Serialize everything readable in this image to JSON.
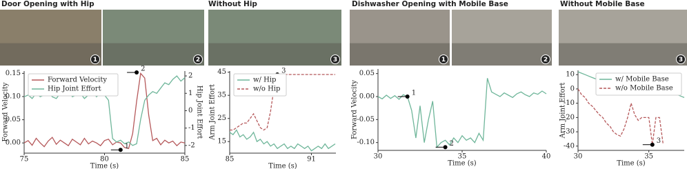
{
  "chart_data": [
    {
      "type": "line",
      "title": "Door Opening with Hip",
      "photo_badges": [
        "1",
        "2"
      ],
      "x_label": "Time (s)",
      "y_label": "Forward Velocity",
      "y2_label": "Hip Joint Effort",
      "x": [
        75,
        75.25,
        75.5,
        75.75,
        76,
        76.25,
        76.5,
        76.75,
        77,
        77.25,
        77.5,
        77.75,
        78,
        78.25,
        78.5,
        78.75,
        79,
        79.25,
        79.5,
        79.75,
        80,
        80.25,
        80.5,
        80.75,
        81,
        81.25,
        81.5,
        81.75,
        82,
        82.25,
        82.5,
        82.75,
        83,
        83.25,
        83.5,
        83.75,
        84,
        84.25,
        84.5,
        84.75,
        85
      ],
      "series": [
        {
          "name": "Forward Velocity",
          "color": "#b5585a",
          "style": "solid",
          "values": [
            0.0,
            0.005,
            -0.005,
            0.01,
            0.0,
            -0.008,
            0.004,
            0.012,
            -0.003,
            0.006,
            0.0,
            -0.006,
            0.008,
            0.002,
            -0.004,
            0.01,
            -0.002,
            0.004,
            0.0,
            -0.006,
            0.005,
            0.008,
            -0.004,
            0.002,
            0.0,
            -0.01,
            -0.012,
            0.02,
            0.09,
            0.15,
            0.14,
            0.06,
            0.005,
            0.01,
            -0.004,
            0.006,
            0.0,
            0.004,
            -0.006,
            0.002,
            0.0
          ]
        },
        {
          "name": "Hip Joint Effort",
          "color": "#6fb69a",
          "style": "solid",
          "axis": "y2",
          "values": [
            0.8,
            0.9,
            0.7,
            1.0,
            0.8,
            0.9,
            1.1,
            0.8,
            0.7,
            1.0,
            0.9,
            1.2,
            0.8,
            0.9,
            1.0,
            0.7,
            0.9,
            1.1,
            0.8,
            1.0,
            0.9,
            0.6,
            -1.6,
            -1.8,
            -1.7,
            -1.9,
            -1.8,
            -2.0,
            -1.9,
            -0.5,
            0.6,
            0.9,
            1.1,
            1.0,
            1.3,
            1.6,
            1.5,
            1.8,
            2.0,
            1.7,
            1.9
          ]
        }
      ],
      "annotations": [
        {
          "text": "1",
          "x": 81,
          "y": -0.015
        },
        {
          "text": "2",
          "x": 82,
          "y": 0.152
        }
      ],
      "xlim": [
        75,
        85
      ],
      "xticks": [
        75,
        80,
        85
      ],
      "ylim": [
        -0.022,
        0.155
      ],
      "yticks": [
        {
          "value": 0,
          "label": "0.00"
        },
        0.05,
        {
          "value": 0.1,
          "label": "0.10"
        },
        0.15
      ],
      "y2lim": [
        -2.44,
        2.28
      ],
      "y2ticks": [
        -2,
        -1,
        0,
        1,
        2
      ],
      "legend": "upper left"
    },
    {
      "type": "line",
      "title": "Without Hip",
      "photo_badges": [
        "3"
      ],
      "x_label": "Time (s)",
      "y_label": "Arm Joint Effort",
      "x": [
        85,
        85.25,
        85.5,
        85.75,
        86,
        86.25,
        86.5,
        86.75,
        87,
        87.25,
        87.5,
        87.75,
        88,
        88.25,
        88.5,
        88.75,
        89,
        89.25,
        89.5,
        89.75,
        90,
        90.25,
        90.5,
        90.75,
        91,
        91.25,
        91.5,
        91.75,
        92,
        92.25,
        92.5,
        92.75
      ],
      "series": [
        {
          "name": "w/ Hip",
          "color": "#6fb69a",
          "style": "solid",
          "values": [
            19,
            18,
            20,
            17,
            18,
            16,
            17,
            19,
            15,
            16,
            14,
            15,
            13,
            14,
            12,
            13,
            14,
            12,
            13,
            12,
            14,
            13,
            12,
            13,
            11,
            12,
            13,
            12,
            14,
            12,
            13,
            14
          ]
        },
        {
          "name": "w/o Hip",
          "color": "#b5585a",
          "style": "dashed",
          "values": [
            20,
            20,
            21,
            22,
            23,
            23,
            25,
            27,
            24,
            21,
            20,
            21,
            28,
            38,
            44,
            44,
            44,
            44,
            44,
            44,
            44,
            44,
            44,
            44,
            44,
            44,
            44,
            44,
            44,
            44,
            44,
            44
          ]
        }
      ],
      "annotations": [
        {
          "text": "3",
          "x": 88.5,
          "y": 44
        }
      ],
      "xlim": [
        85,
        92.8
      ],
      "xticks": [
        85,
        91
      ],
      "ylim": [
        10,
        45.5
      ],
      "yticks": [
        15,
        25,
        35,
        45
      ],
      "legend": "upper left"
    },
    {
      "type": "line",
      "title": "Dishwasher Opening with Mobile Base",
      "photo_badges": [
        "1",
        "2"
      ],
      "x_label": "Time (s)",
      "y_label": "Forward Velocity",
      "x": [
        30,
        30.25,
        30.5,
        30.75,
        31,
        31.25,
        31.5,
        31.75,
        32,
        32.25,
        32.5,
        32.75,
        33,
        33.25,
        33.5,
        33.75,
        34,
        34.25,
        34.5,
        34.75,
        35,
        35.25,
        35.5,
        35.75,
        36,
        36.25,
        36.5,
        36.75,
        37,
        37.25,
        37.5,
        37.75,
        38,
        38.25,
        38.5,
        38.75,
        39,
        39.25,
        39.5,
        39.75,
        40
      ],
      "series": [
        {
          "name": "Forward Velocity",
          "color": "#6fb69a",
          "style": "solid",
          "values": [
            0,
            -0.005,
            0.003,
            -0.004,
            0.002,
            -0.006,
            0.004,
            0,
            -0.03,
            -0.09,
            -0.02,
            -0.1,
            -0.05,
            -0.01,
            -0.11,
            -0.1,
            -0.095,
            -0.105,
            -0.09,
            -0.1,
            -0.085,
            -0.095,
            -0.09,
            -0.1,
            -0.08,
            -0.095,
            0.04,
            0.01,
            0.005,
            0,
            0.008,
            0.003,
            -0.002,
            0.006,
            0.01,
            0.004,
            0,
            0.008,
            0.005,
            0.012,
            0.006
          ]
        }
      ],
      "annotations": [
        {
          "text": "1",
          "x": 31.75,
          "y": 0
        },
        {
          "text": "2",
          "x": 34,
          "y": -0.11
        }
      ],
      "xlim": [
        30,
        40
      ],
      "xticks": [
        30,
        35,
        40
      ],
      "ylim": [
        -0.117,
        0.06
      ],
      "yticks": [
        {
          "value": -0.1,
          "label": "-0.10"
        },
        -0.05,
        {
          "value": 0,
          "label": "0.00"
        },
        0.05
      ],
      "legend": "none"
    },
    {
      "type": "line",
      "title": "Without Mobile Base",
      "photo_badges": [
        "3"
      ],
      "x_label": "Time (s)",
      "y_label": "Arm Joint Effort",
      "x": [
        30,
        30.25,
        30.5,
        30.75,
        31,
        31.25,
        31.5,
        31.75,
        32,
        32.25,
        32.5,
        32.75,
        33,
        33.25,
        33.5,
        33.75,
        34,
        34.25,
        34.5,
        34.75,
        35,
        35.25,
        35.5,
        35.75,
        36,
        36.25,
        36.5,
        36.75,
        37,
        37.25,
        37.5
      ],
      "series": [
        {
          "name": "w/ Mobile Base",
          "color": "#6fb69a",
          "style": "solid",
          "values": [
            12,
            11,
            10,
            9,
            8,
            7,
            6,
            5,
            3,
            4,
            5,
            4,
            3,
            1,
            0,
            -1,
            -2,
            -1,
            0,
            -2,
            -1,
            -2,
            -1,
            0,
            -1,
            -2,
            -3,
            -3,
            -4,
            -5,
            -6
          ]
        },
        {
          "name": "w/o Mobile Base",
          "color": "#b5585a",
          "style": "dashed",
          "values": [
            0,
            -4,
            -6,
            -10,
            -12,
            -15,
            -18,
            -20,
            -24,
            -26,
            -30,
            -32,
            -33,
            -28,
            -20,
            -10,
            -18,
            -22,
            -20,
            -20,
            -20,
            -39,
            -20,
            -20,
            -38,
            null,
            null,
            null,
            null,
            null,
            null
          ]
        }
      ],
      "annotations": [
        {
          "text": "3",
          "x": 35.25,
          "y": -39
        }
      ],
      "xlim": [
        30,
        37.5
      ],
      "xticks": [
        30,
        35
      ],
      "ylim": [
        -43,
        13
      ],
      "yticks": [
        -40,
        -30,
        -20,
        -10,
        0,
        10
      ],
      "legend": "upper right"
    }
  ]
}
